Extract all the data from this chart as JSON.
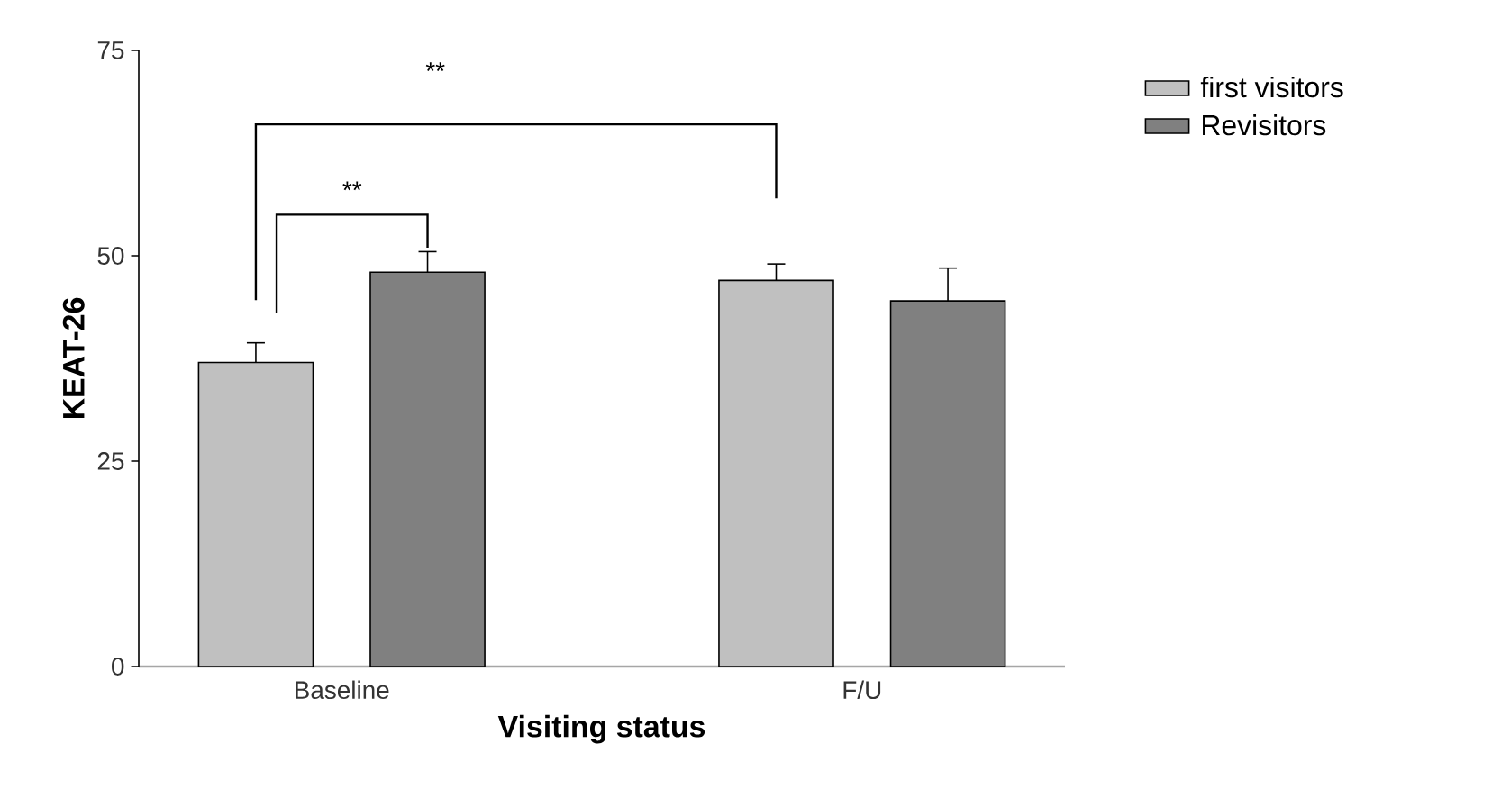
{
  "chart_data": {
    "type": "bar",
    "xlabel": "Visiting status",
    "ylabel": "KEAT-26",
    "categories": [
      "Baseline",
      "F/U"
    ],
    "series": [
      {
        "name": "first visitors",
        "color": "#c0c0c0",
        "values": [
          37,
          47
        ],
        "errors": [
          2.4,
          2
        ]
      },
      {
        "name": "Revisitors",
        "color": "#808080",
        "values": [
          48,
          44.5
        ],
        "errors": [
          2.5,
          4
        ]
      }
    ],
    "ylim": [
      0,
      75
    ],
    "yticks": [
      0,
      25,
      50,
      75
    ],
    "legend": "top right",
    "grid": false,
    "annotations": [
      "**",
      "**"
    ]
  }
}
